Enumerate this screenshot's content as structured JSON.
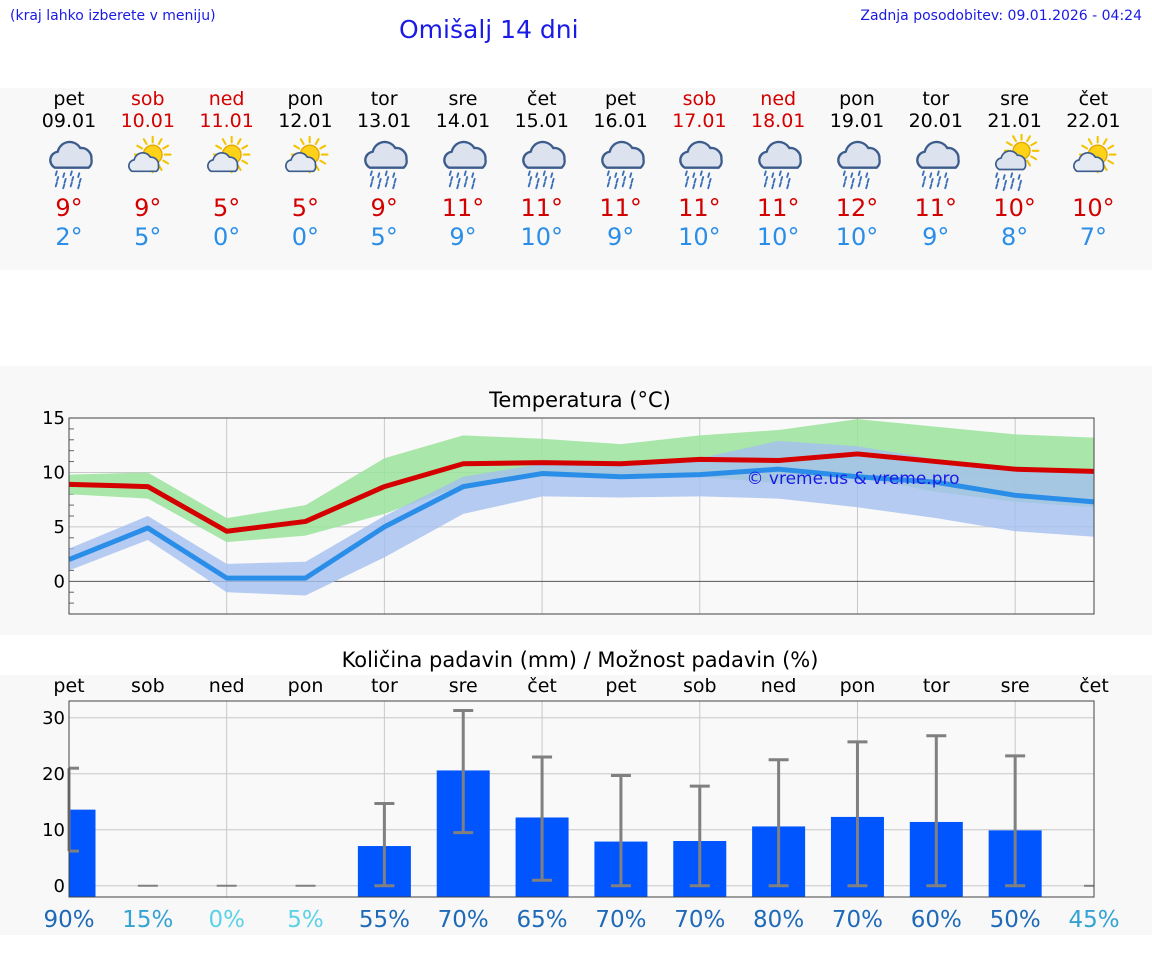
{
  "header": {
    "hint": "(kraj lahko izberete v meniju)",
    "title": "Omišalj 14 dni",
    "updated": "Zadnja posodobitev: 09.01.2026 - 04:24"
  },
  "days": [
    {
      "name": "pet",
      "date": "09.01",
      "weekend": false,
      "icon": "rain-icon",
      "max": "9°",
      "min": "2°"
    },
    {
      "name": "sob",
      "date": "10.01",
      "weekend": true,
      "icon": "sun-cloud-icon",
      "max": "9°",
      "min": "5°"
    },
    {
      "name": "ned",
      "date": "11.01",
      "weekend": true,
      "icon": "sun-cloud-icon",
      "max": "5°",
      "min": "0°"
    },
    {
      "name": "pon",
      "date": "12.01",
      "weekend": false,
      "icon": "sun-cloud-icon",
      "max": "5°",
      "min": "0°"
    },
    {
      "name": "tor",
      "date": "13.01",
      "weekend": false,
      "icon": "rain-icon",
      "max": "9°",
      "min": "5°"
    },
    {
      "name": "sre",
      "date": "14.01",
      "weekend": false,
      "icon": "rain-icon",
      "max": "11°",
      "min": "9°"
    },
    {
      "name": "čet",
      "date": "15.01",
      "weekend": false,
      "icon": "rain-icon",
      "max": "11°",
      "min": "10°"
    },
    {
      "name": "pet",
      "date": "16.01",
      "weekend": false,
      "icon": "rain-icon",
      "max": "11°",
      "min": "9°"
    },
    {
      "name": "sob",
      "date": "17.01",
      "weekend": true,
      "icon": "rain-icon",
      "max": "11°",
      "min": "10°"
    },
    {
      "name": "ned",
      "date": "18.01",
      "weekend": true,
      "icon": "rain-icon",
      "max": "11°",
      "min": "10°"
    },
    {
      "name": "pon",
      "date": "19.01",
      "weekend": false,
      "icon": "rain-icon",
      "max": "12°",
      "min": "10°"
    },
    {
      "name": "tor",
      "date": "20.01",
      "weekend": false,
      "icon": "rain-icon",
      "max": "11°",
      "min": "9°"
    },
    {
      "name": "sre",
      "date": "21.01",
      "weekend": false,
      "icon": "sun-rain-icon",
      "max": "10°",
      "min": "8°"
    },
    {
      "name": "čet",
      "date": "22.01",
      "weekend": false,
      "icon": "sun-cloud-icon",
      "max": "10°",
      "min": "7°"
    }
  ],
  "colors": {
    "max": "#d40000",
    "min": "#2a8ee8",
    "title": "#1a1ae6",
    "max_band": "#9be39b",
    "min_band": "#a4bff0",
    "bar": "#0055ff",
    "whisker": "#808080"
  },
  "chart_data": [
    {
      "type": "line",
      "title": "Temperatura (°C)",
      "watermark": "© vreme.us & vreme.pro",
      "y_ticks": [
        0,
        5,
        10,
        15
      ],
      "ylim": [
        -3,
        15
      ],
      "series": [
        {
          "name": "max",
          "values": [
            8.9,
            8.7,
            4.6,
            5.5,
            8.7,
            10.8,
            10.9,
            10.8,
            11.2,
            11.1,
            11.7,
            11.0,
            10.3,
            10.1
          ],
          "band_low": [
            8.0,
            7.6,
            3.6,
            4.2,
            6.2,
            8.8,
            9.6,
            9.4,
            9.6,
            9.0,
            9.6,
            8.2,
            7.3,
            6.8
          ],
          "band_high": [
            9.8,
            10.0,
            5.8,
            7.0,
            11.3,
            13.4,
            13.1,
            12.6,
            13.4,
            13.9,
            14.9,
            14.2,
            13.5,
            13.2
          ]
        },
        {
          "name": "min",
          "values": [
            2.0,
            4.9,
            0.3,
            0.3,
            5.0,
            8.7,
            9.9,
            9.6,
            9.8,
            10.3,
            9.6,
            9.1,
            7.9,
            7.3
          ],
          "band_low": [
            1.0,
            3.8,
            -1.0,
            -1.3,
            2.2,
            6.2,
            7.8,
            7.7,
            7.8,
            7.6,
            6.8,
            5.8,
            4.6,
            4.1
          ],
          "band_high": [
            3.0,
            6.0,
            1.6,
            1.8,
            6.0,
            9.6,
            10.8,
            10.9,
            11.3,
            12.9,
            12.4,
            11.2,
            10.2,
            9.9
          ]
        }
      ]
    },
    {
      "type": "bar",
      "title": "Količina padavin (mm) / Možnost padavin (%)",
      "categories": [
        "pet",
        "sob",
        "ned",
        "pon",
        "tor",
        "sre",
        "čet",
        "pet",
        "sob",
        "ned",
        "pon",
        "tor",
        "sre",
        "čet"
      ],
      "values": [
        13.6,
        0,
        0,
        0,
        7.1,
        20.6,
        12.2,
        7.9,
        8.0,
        10.6,
        12.3,
        11.4,
        9.9,
        0
      ],
      "err_low": [
        6.2,
        0,
        0,
        0,
        0,
        9.5,
        1.0,
        0,
        0,
        0,
        0,
        0,
        0,
        0
      ],
      "err_high": [
        21.0,
        0,
        0,
        0,
        14.7,
        31.3,
        23.0,
        19.7,
        17.8,
        22.5,
        25.7,
        26.8,
        23.2,
        0
      ],
      "y_ticks": [
        0,
        10,
        20,
        30
      ],
      "ylim": [
        -2,
        33
      ],
      "probability": [
        "90%",
        "15%",
        "0%",
        "5%",
        "55%",
        "70%",
        "65%",
        "70%",
        "70%",
        "80%",
        "70%",
        "60%",
        "50%",
        "45%"
      ],
      "probability_colors": [
        "#1e6ab8",
        "#33a2d4",
        "#5cd2e6",
        "#5cd2e6",
        "#1e6ab8",
        "#1e6ab8",
        "#1e6ab8",
        "#1e6ab8",
        "#1e6ab8",
        "#1e6ab8",
        "#1e6ab8",
        "#1e6ab8",
        "#1e6ab8",
        "#33a2d4"
      ]
    }
  ]
}
